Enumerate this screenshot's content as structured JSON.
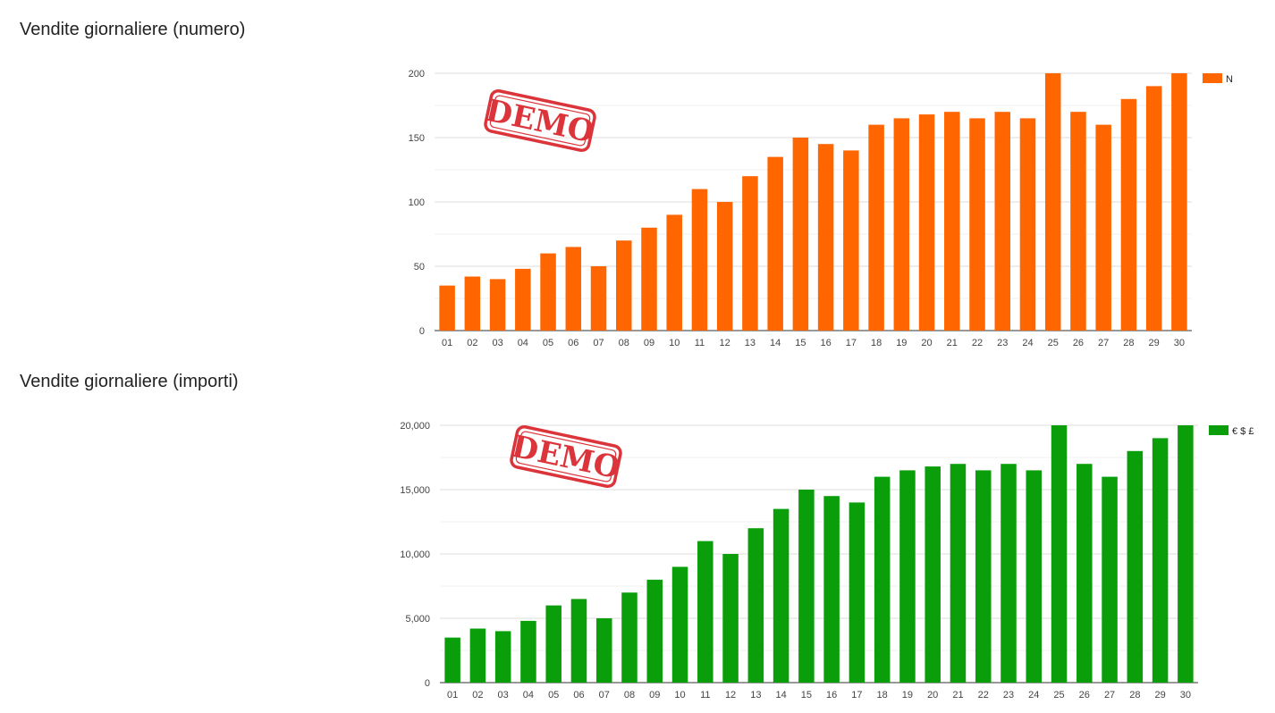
{
  "sections": [
    {
      "title": "Vendite giornaliere (numero)"
    },
    {
      "title": "Vendite giornaliere (importi)"
    }
  ],
  "watermark": {
    "text": "DEMO",
    "color": "#d8232a"
  },
  "chart_data": [
    {
      "type": "bar",
      "title": "",
      "xlabel": "",
      "ylabel": "",
      "categories": [
        "01",
        "02",
        "03",
        "04",
        "05",
        "06",
        "07",
        "08",
        "09",
        "10",
        "11",
        "12",
        "13",
        "14",
        "15",
        "16",
        "17",
        "18",
        "19",
        "20",
        "21",
        "22",
        "23",
        "24",
        "25",
        "26",
        "27",
        "28",
        "29",
        "30"
      ],
      "series": [
        {
          "name": "N",
          "color": "#ff6600",
          "values": [
            35,
            42,
            40,
            48,
            60,
            65,
            50,
            70,
            80,
            90,
            110,
            100,
            120,
            135,
            150,
            145,
            140,
            160,
            165,
            168,
            170,
            165,
            170,
            165,
            200,
            170,
            160,
            180,
            190,
            200
          ]
        }
      ],
      "ylim": [
        0,
        200
      ],
      "yticks": [
        0,
        50,
        100,
        150,
        200
      ],
      "ytick_labels": [
        "0",
        "50",
        "100",
        "150",
        "200"
      ],
      "grid": true,
      "legend": "top-right"
    },
    {
      "type": "bar",
      "title": "",
      "xlabel": "",
      "ylabel": "",
      "categories": [
        "01",
        "02",
        "03",
        "04",
        "05",
        "06",
        "07",
        "08",
        "09",
        "10",
        "11",
        "12",
        "13",
        "14",
        "15",
        "16",
        "17",
        "18",
        "19",
        "20",
        "21",
        "22",
        "23",
        "24",
        "25",
        "26",
        "27",
        "28",
        "29",
        "30"
      ],
      "series": [
        {
          "name": "€ $ £",
          "color": "#0a9e0a",
          "values": [
            3500,
            4200,
            4000,
            4800,
            6000,
            6500,
            5000,
            7000,
            8000,
            9000,
            11000,
            10000,
            12000,
            13500,
            15000,
            14500,
            14000,
            16000,
            16500,
            16800,
            17000,
            16500,
            17000,
            16500,
            20000,
            17000,
            16000,
            18000,
            19000,
            20000
          ]
        }
      ],
      "ylim": [
        0,
        20000
      ],
      "yticks": [
        0,
        5000,
        10000,
        15000,
        20000
      ],
      "ytick_labels": [
        "0",
        "5,000",
        "10,000",
        "15,000",
        "20,000"
      ],
      "grid": true,
      "legend": "top-right"
    }
  ]
}
